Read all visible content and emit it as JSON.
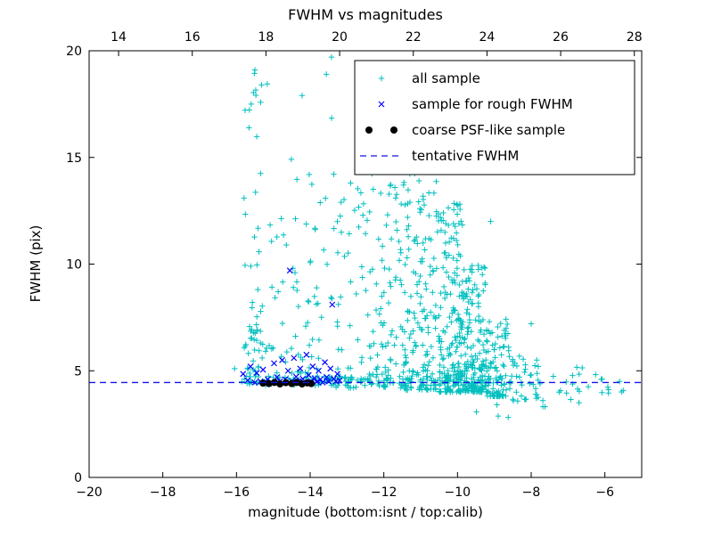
{
  "figure": {
    "title": "FWHM vs magnitudes"
  },
  "chart_data": {
    "type": "scatter",
    "title": "FWHM vs magnitudes",
    "xlabel": "magnitude (bottom:isnt / top:calib)",
    "ylabel": "FWHM (pix)",
    "grid": false,
    "x_axis_bottom": {
      "min": -20,
      "max": -5,
      "ticks": [
        -20,
        -18,
        -16,
        -14,
        -12,
        -10,
        -8,
        -6
      ]
    },
    "x_axis_top": {
      "min": 13.2,
      "max": 28.2,
      "ticks": [
        14,
        16,
        18,
        20,
        22,
        24,
        26,
        28
      ]
    },
    "y_axis": {
      "min": 0,
      "max": 20,
      "ticks": [
        0,
        5,
        10,
        15,
        20
      ]
    },
    "legend": {
      "position": "upper right",
      "border_color": "#000000",
      "background": "#ffffff"
    },
    "series": [
      {
        "name": "all sample",
        "marker": "plus",
        "color": "#00bfbf",
        "clusters": [
          {
            "n": 45,
            "x": [
              -15.8,
              -15.15
            ],
            "y": [
              4.5,
              19.2
            ],
            "p": 1.6
          },
          {
            "n": 25,
            "x": [
              -15.8,
              -15.1
            ],
            "y": [
              4.4,
              7.0
            ],
            "p": 1.0
          },
          {
            "n": 18,
            "x": [
              -15.1,
              -14.6
            ],
            "y": [
              4.4,
              13.0
            ],
            "p": 1.5
          },
          {
            "n": 35,
            "x": [
              -14.55,
              -14.0
            ],
            "y": [
              4.4,
              16.5
            ],
            "p": 1.4
          },
          {
            "n": 30,
            "x": [
              -14.0,
              -13.3
            ],
            "y": [
              4.3,
              19.8
            ],
            "p": 1.6
          },
          {
            "n": 45,
            "x": [
              -13.3,
              -12.5
            ],
            "y": [
              4.2,
              14.5
            ],
            "p": 1.8
          },
          {
            "n": 90,
            "x": [
              -12.5,
              -11.5
            ],
            "y": [
              4.2,
              14.5
            ],
            "p": 1.8
          },
          {
            "n": 170,
            "x": [
              -11.5,
              -10.5
            ],
            "y": [
              4.1,
              15.0
            ],
            "p": 2.0
          },
          {
            "n": 200,
            "x": [
              -10.5,
              -9.8
            ],
            "y": [
              4.0,
              13.0
            ],
            "p": 2.2
          },
          {
            "n": 170,
            "x": [
              -9.8,
              -9.2
            ],
            "y": [
              4.0,
              10.0
            ],
            "p": 2.2
          },
          {
            "n": 80,
            "x": [
              -9.2,
              -8.6
            ],
            "y": [
              3.8,
              7.5
            ],
            "p": 1.8
          },
          {
            "n": 40,
            "x": [
              -8.6,
              -7.8
            ],
            "y": [
              3.5,
              5.8
            ],
            "p": 1.2
          },
          {
            "n": 16,
            "x": [
              -7.8,
              -6.6
            ],
            "y": [
              3.4,
              5.2
            ],
            "p": 1.0
          },
          {
            "n": 9,
            "x": [
              -6.6,
              -5.4
            ],
            "y": [
              3.9,
              5.0
            ],
            "p": 1.0
          },
          {
            "n": 130,
            "x": [
              -16.0,
              -8.5
            ],
            "y": [
              4.3,
              4.75
            ],
            "p": 1.0
          },
          {
            "n": 6,
            "x": [
              -9.6,
              -7.4
            ],
            "y": [
              2.6,
              3.5
            ],
            "p": 1.0
          }
        ],
        "points": [
          [
            -13.42,
            19.7
          ],
          [
            -13.56,
            18.9
          ],
          [
            -14.22,
            17.9
          ],
          [
            -15.5,
            19.1
          ],
          [
            -15.32,
            18.4
          ],
          [
            -15.6,
            17.5
          ],
          [
            -12.9,
            13.8
          ],
          [
            -10.4,
            15.1
          ],
          [
            -9.1,
            12.0
          ],
          [
            -8.0,
            7.2
          ],
          [
            -6.1,
            4.6
          ],
          [
            -5.6,
            4.5
          ],
          [
            -16.05,
            5.1
          ]
        ]
      },
      {
        "name": "sample for rough FWHM",
        "marker": "x",
        "color": "#0000ff",
        "points": [
          [
            -15.82,
            4.85
          ],
          [
            -15.7,
            4.55
          ],
          [
            -15.62,
            5.2
          ],
          [
            -15.5,
            4.45
          ],
          [
            -15.45,
            4.9
          ],
          [
            -15.35,
            4.5
          ],
          [
            -15.28,
            5.05
          ],
          [
            -15.15,
            4.6
          ],
          [
            -15.05,
            4.45
          ],
          [
            -14.98,
            5.35
          ],
          [
            -14.9,
            4.7
          ],
          [
            -14.82,
            4.5
          ],
          [
            -14.76,
            5.5
          ],
          [
            -14.68,
            4.6
          ],
          [
            -14.6,
            5.0
          ],
          [
            -14.55,
            9.7
          ],
          [
            -14.5,
            4.5
          ],
          [
            -14.44,
            5.6
          ],
          [
            -14.38,
            4.72
          ],
          [
            -14.32,
            4.5
          ],
          [
            -14.27,
            5.1
          ],
          [
            -14.2,
            4.62
          ],
          [
            -14.15,
            4.42
          ],
          [
            -14.1,
            5.75
          ],
          [
            -14.04,
            4.8
          ],
          [
            -13.98,
            4.52
          ],
          [
            -13.93,
            5.2
          ],
          [
            -13.88,
            4.65
          ],
          [
            -13.82,
            4.48
          ],
          [
            -13.77,
            5.0
          ],
          [
            -13.72,
            4.6
          ],
          [
            -13.66,
            4.45
          ],
          [
            -13.6,
            5.4
          ],
          [
            -13.55,
            4.7
          ],
          [
            -13.5,
            4.5
          ],
          [
            -13.45,
            5.1
          ],
          [
            -13.4,
            8.1
          ],
          [
            -13.36,
            4.62
          ],
          [
            -13.3,
            4.5
          ],
          [
            -13.26,
            4.85
          ],
          [
            -13.2,
            4.55
          ]
        ]
      },
      {
        "name": "coarse PSF-like sample",
        "marker": "circle",
        "color": "#000000",
        "points": [
          [
            -15.28,
            4.42
          ],
          [
            -15.12,
            4.4
          ],
          [
            -14.97,
            4.45
          ],
          [
            -14.82,
            4.38
          ],
          [
            -14.66,
            4.44
          ],
          [
            -14.5,
            4.4
          ],
          [
            -14.36,
            4.45
          ],
          [
            -14.22,
            4.38
          ],
          [
            -14.08,
            4.43
          ],
          [
            -13.97,
            4.4
          ]
        ]
      },
      {
        "name": "tentative FWHM",
        "marker": "dashed-line",
        "color": "#1515e8",
        "hline_y": 4.45
      }
    ]
  }
}
